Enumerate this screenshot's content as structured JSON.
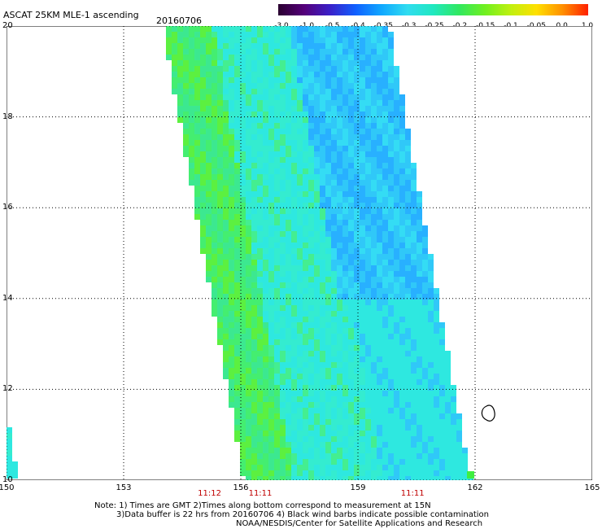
{
  "header": {
    "title": "ASCAT 25KM MLE-1 ascending",
    "date": "20160706"
  },
  "colorbar": {
    "labels": [
      "-3.0",
      "-1.0",
      "-0.5",
      "-0.4",
      "-0.35",
      "-0.3",
      "-0.25",
      "-0.2",
      "-0.15",
      "-0.1",
      "-0.05",
      "0.0",
      "1.0"
    ],
    "colors": [
      "#2a0030",
      "#55007a",
      "#3a20c8",
      "#1060ff",
      "#10a8ff",
      "#30dcf0",
      "#20e8c0",
      "#30e860",
      "#70f020",
      "#c0f010",
      "#ffe000",
      "#ff9000",
      "#ff2000"
    ]
  },
  "axes": {
    "x_ticks": [
      "150",
      "153",
      "156",
      "159",
      "162",
      "165"
    ],
    "y_ticks": [
      "20",
      "18",
      "16",
      "14",
      "12",
      "10"
    ],
    "x_range": [
      150,
      165
    ],
    "y_range": [
      10,
      20
    ]
  },
  "times": [
    {
      "label": "11:12",
      "lon": 155.2
    },
    {
      "label": "11:11",
      "lon": 156.5
    },
    {
      "label": "11:11",
      "lon": 160.4
    }
  ],
  "notes": {
    "line1": "Note: 1) Times are GMT 2)Times along bottom correspond to measurement at 15N",
    "line2": "3)Data buffer is 22 hrs from 20160706 4) Black wind barbs indicate possible contamination",
    "line3": "NOAA/NESDIS/Center for Satellite Applications and Research"
  },
  "colors": {
    "swath_base": "#2ee8e0",
    "swath_green": "#40ee60",
    "swath_blue": "#28b0ff",
    "grid": "#000000"
  }
}
